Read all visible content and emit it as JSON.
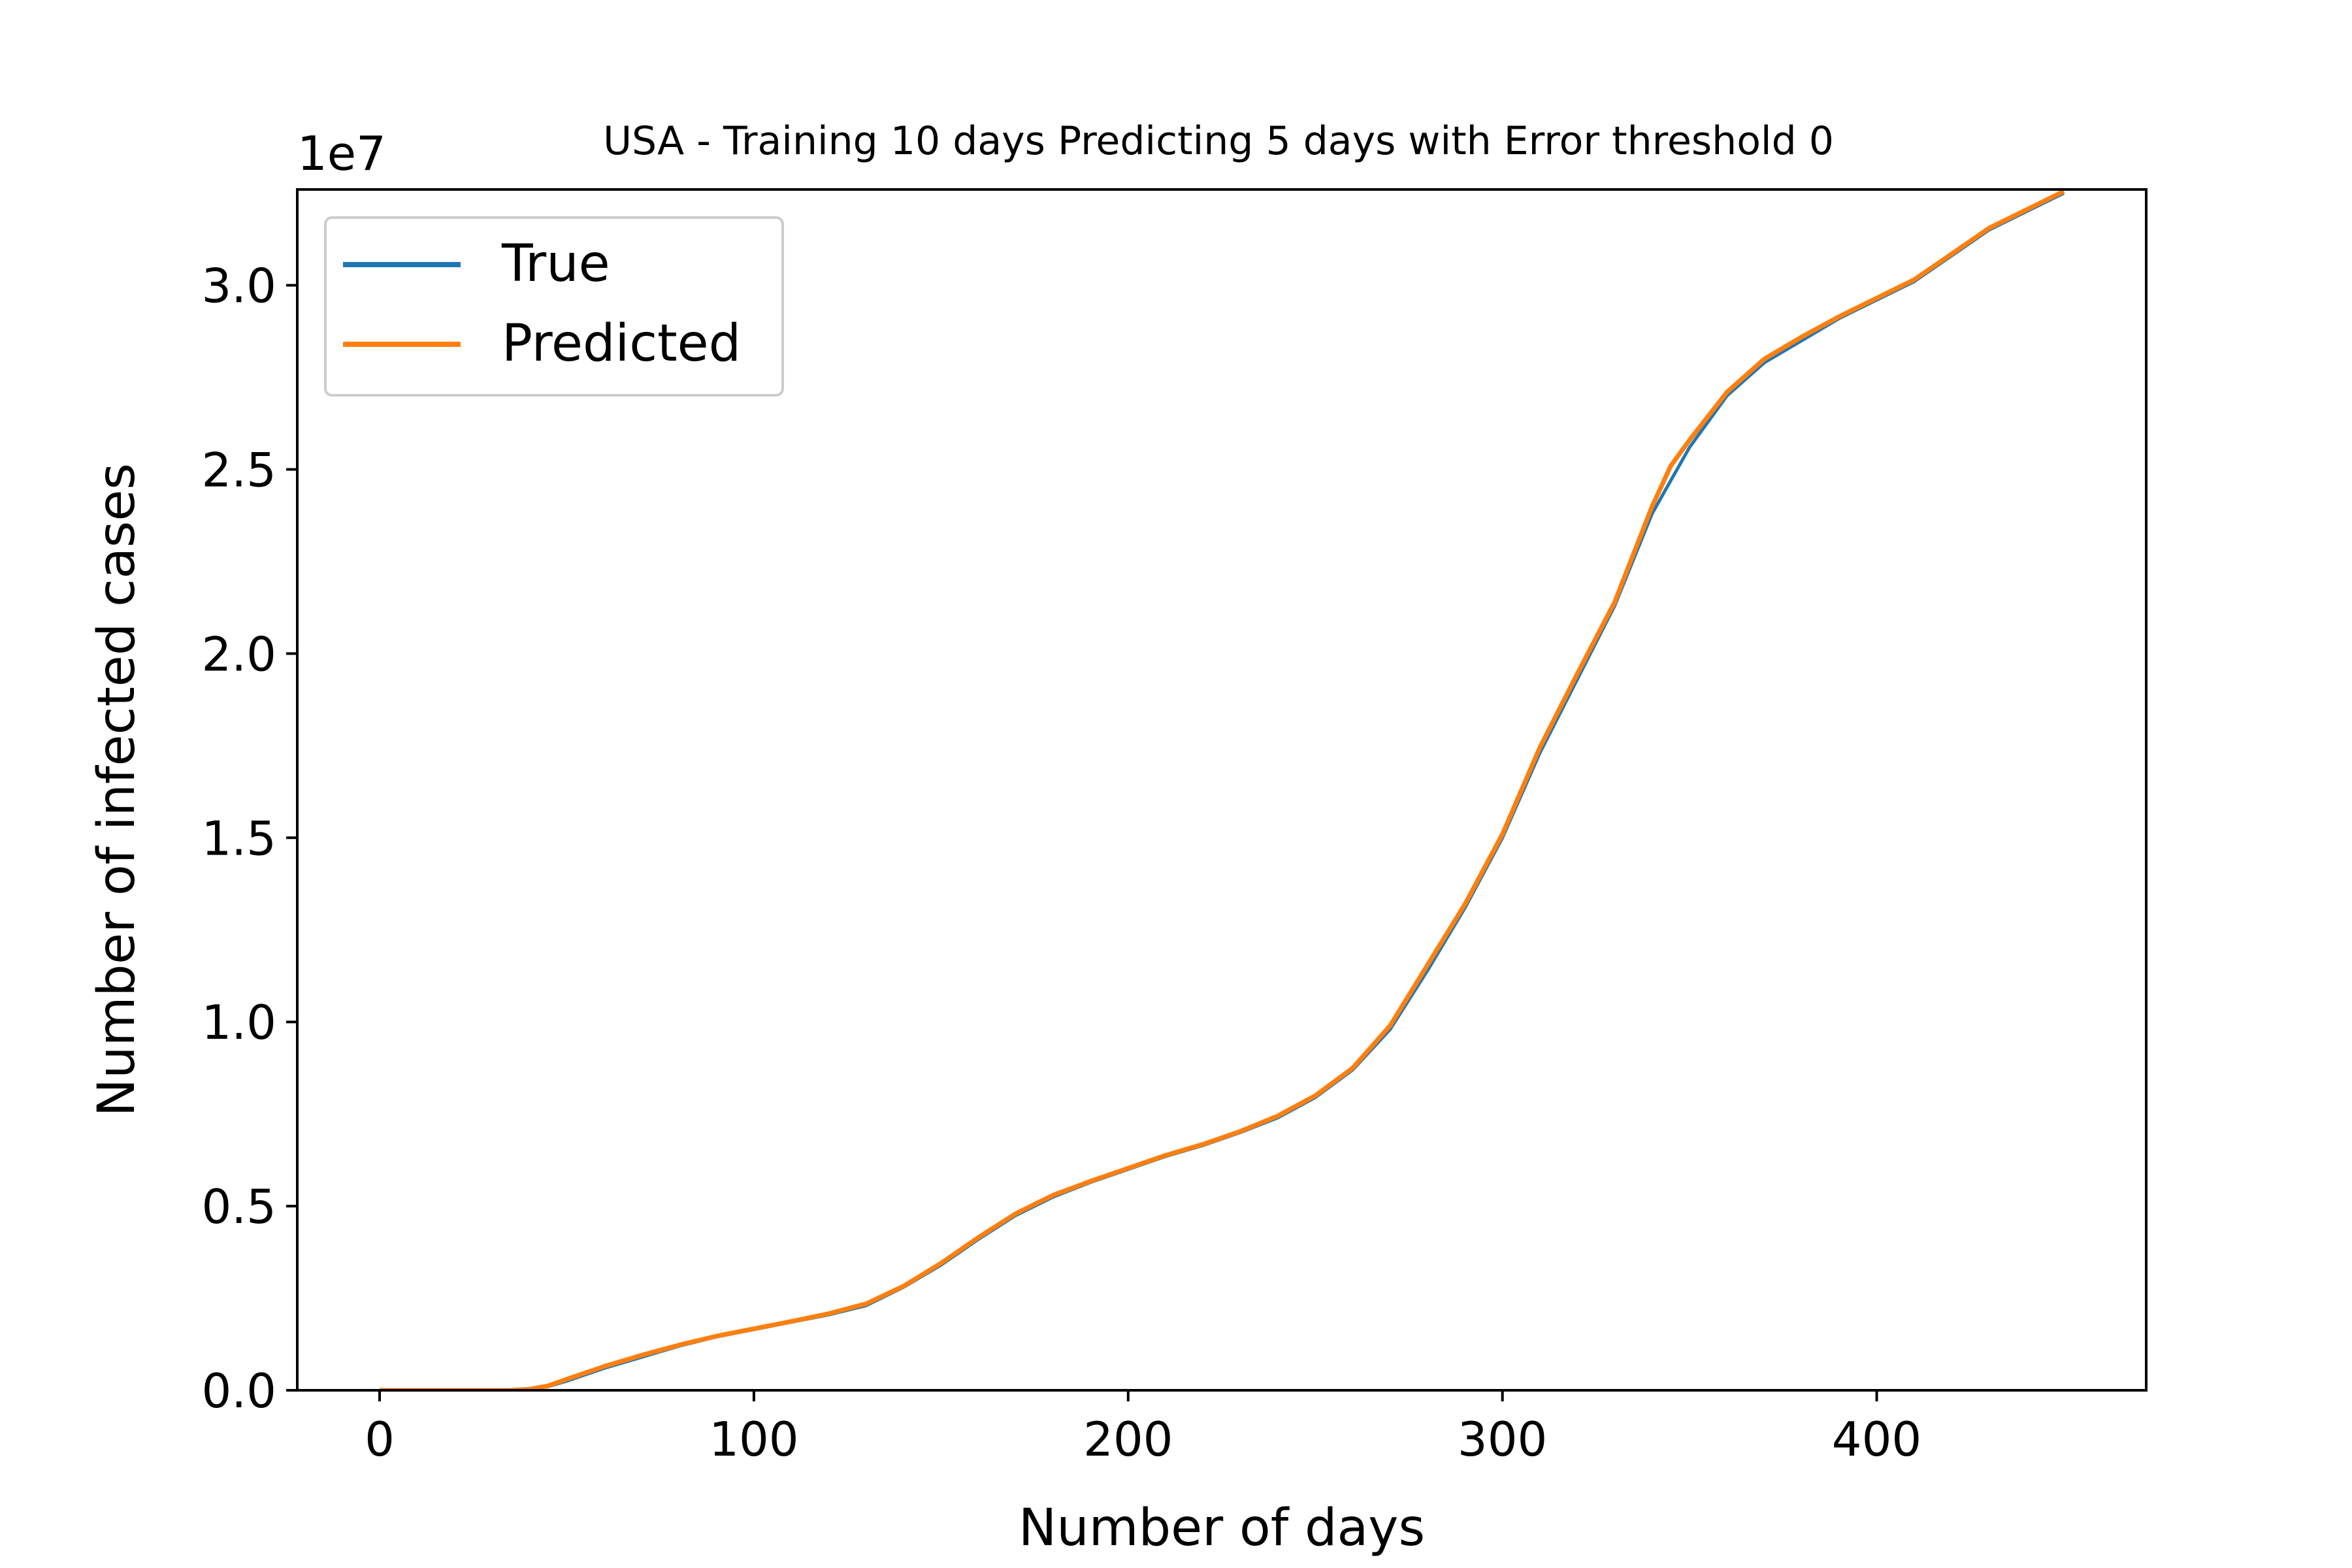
{
  "chart_data": {
    "type": "line",
    "title": "USA - Training 10 days Predicting 5 days with Error threshold 0",
    "xlabel": "Number of days",
    "ylabel": "Number of infected cases",
    "y_offset_label": "1e7",
    "xlim": [
      -22,
      472
    ],
    "ylim": [
      0,
      3.26
    ],
    "x_ticks": [
      0,
      100,
      200,
      300,
      400
    ],
    "x_tick_labels": [
      "0",
      "100",
      "200",
      "300",
      "400"
    ],
    "y_ticks": [
      0,
      0.5,
      1.0,
      1.5,
      2.0,
      2.5,
      3.0
    ],
    "y_tick_labels": [
      "0.0",
      "0.5",
      "1.0",
      "1.5",
      "2.0",
      "2.5",
      "3.0"
    ],
    "grid": false,
    "legend_position": "top-left",
    "x": [
      0,
      20,
      35,
      40,
      45,
      50,
      60,
      70,
      80,
      90,
      100,
      110,
      120,
      130,
      140,
      150,
      160,
      170,
      180,
      190,
      200,
      210,
      220,
      230,
      240,
      250,
      260,
      270,
      280,
      290,
      300,
      310,
      320,
      330,
      340,
      345,
      350,
      360,
      370,
      380,
      390,
      400,
      410,
      420,
      430,
      440,
      450
    ],
    "series": [
      {
        "name": "True",
        "color": "#1f77b4",
        "values": [
          0,
          0,
          0,
          0.003,
          0.01,
          0.025,
          0.06,
          0.09,
          0.12,
          0.145,
          0.165,
          0.185,
          0.205,
          0.23,
          0.28,
          0.34,
          0.41,
          0.475,
          0.525,
          0.565,
          0.6,
          0.635,
          0.665,
          0.7,
          0.74,
          0.795,
          0.87,
          0.98,
          1.14,
          1.31,
          1.5,
          1.73,
          1.93,
          2.13,
          2.38,
          2.47,
          2.56,
          2.7,
          2.79,
          2.85,
          2.91,
          2.96,
          3.01,
          3.08,
          3.15,
          3.2,
          3.25
        ]
      },
      {
        "name": "Predicted",
        "color": "#ff7f0e",
        "values": [
          0,
          0,
          0,
          0.003,
          0.012,
          0.03,
          0.065,
          0.095,
          0.123,
          0.147,
          0.167,
          0.187,
          0.208,
          0.235,
          0.283,
          0.345,
          0.415,
          0.48,
          0.53,
          0.568,
          0.603,
          0.638,
          0.668,
          0.703,
          0.745,
          0.8,
          0.875,
          0.99,
          1.155,
          1.32,
          1.51,
          1.745,
          1.945,
          2.14,
          2.4,
          2.51,
          2.58,
          2.71,
          2.8,
          2.86,
          2.915,
          2.965,
          3.015,
          3.085,
          3.155,
          3.205,
          3.255
        ]
      }
    ]
  }
}
